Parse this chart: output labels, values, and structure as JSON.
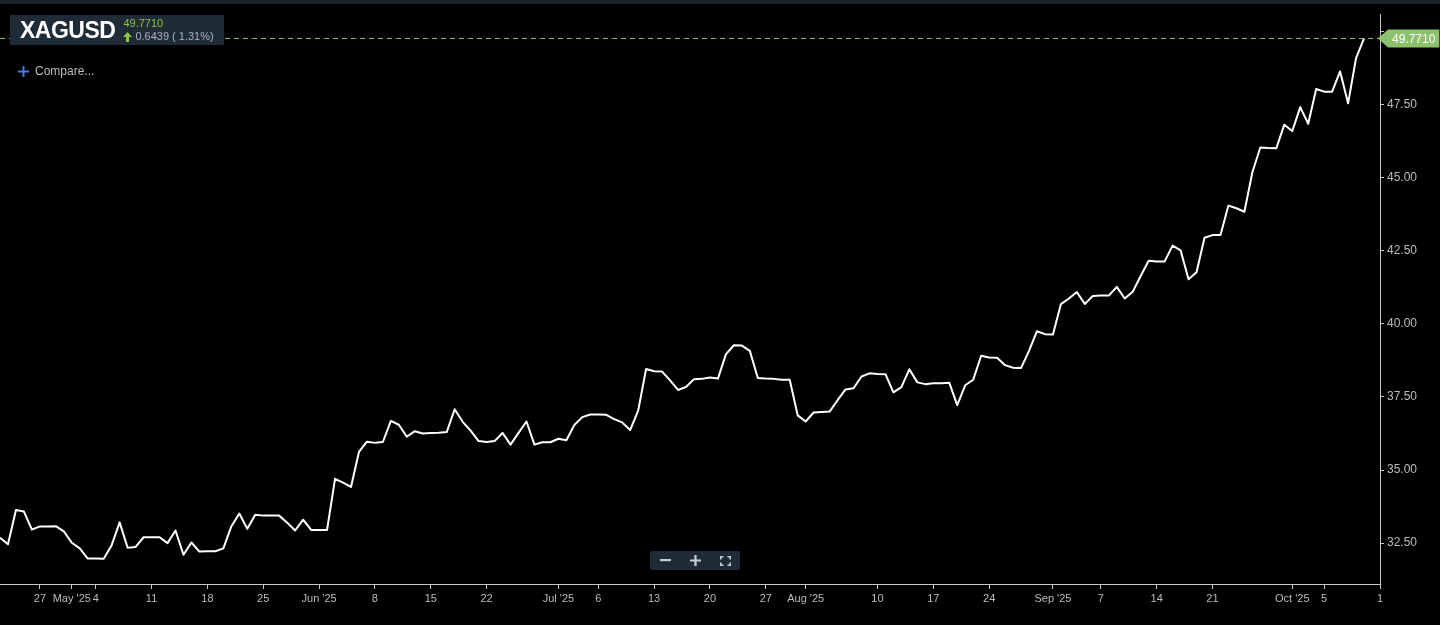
{
  "chart_data": {
    "type": "line",
    "title": "XAGUSD",
    "subtitle": "49.7710",
    "annotations": [
      "0.6439 ( 1.31%)",
      "Compare..."
    ],
    "xlim": [
      "2025-04-22",
      "2025-10-12"
    ],
    "xticks": [
      {
        "value": "2025-04-27",
        "label": "27"
      },
      {
        "value": "2025-05-01",
        "label": "May '25"
      },
      {
        "value": "2025-05-04",
        "label": "4"
      },
      {
        "value": "2025-05-11",
        "label": "11"
      },
      {
        "value": "2025-05-18",
        "label": "18"
      },
      {
        "value": "2025-05-25",
        "label": "25"
      },
      {
        "value": "2025-06-01",
        "label": "Jun '25"
      },
      {
        "value": "2025-06-08",
        "label": "8"
      },
      {
        "value": "2025-06-15",
        "label": "15"
      },
      {
        "value": "2025-06-22",
        "label": "22"
      },
      {
        "value": "2025-07-01",
        "label": "Jul '25"
      },
      {
        "value": "2025-07-06",
        "label": "6"
      },
      {
        "value": "2025-07-13",
        "label": "13"
      },
      {
        "value": "2025-07-20",
        "label": "20"
      },
      {
        "value": "2025-07-27",
        "label": "27"
      },
      {
        "value": "2025-08-01",
        "label": "Aug '25"
      },
      {
        "value": "2025-08-10",
        "label": "10"
      },
      {
        "value": "2025-08-17",
        "label": "17"
      },
      {
        "value": "2025-08-24",
        "label": "24"
      },
      {
        "value": "2025-09-01",
        "label": "Sep '25"
      },
      {
        "value": "2025-09-07",
        "label": "7"
      },
      {
        "value": "2025-09-14",
        "label": "14"
      },
      {
        "value": "2025-09-21",
        "label": "21"
      },
      {
        "value": "2025-10-01",
        "label": "Oct '25"
      },
      {
        "value": "2025-10-05",
        "label": "5"
      },
      {
        "value": "2025-10-12",
        "label": "1"
      }
    ],
    "ylim": [
      31.1,
      50.6
    ],
    "yticks": [
      {
        "value": 32.5,
        "label": "32.50"
      },
      {
        "value": 35,
        "label": "35.00"
      },
      {
        "value": 37.5,
        "label": "37.50"
      },
      {
        "value": 40,
        "label": "40.00"
      },
      {
        "value": 42.5,
        "label": "42.50"
      },
      {
        "value": 45,
        "label": "45.00"
      },
      {
        "value": 47.5,
        "label": "47.50"
      },
      {
        "value": 50,
        "label": null
      }
    ],
    "grid": false,
    "legend": false,
    "marker": "none",
    "line_style": "solid",
    "ref_lines": [
      {
        "axis": "y",
        "value": 49.771,
        "label": "49.7710",
        "color": "#8cc26c",
        "line_style": "dashed"
      }
    ],
    "series": [
      {
        "color": "#ffffff",
        "x": [
          "2025-04-22",
          "2025-04-23",
          "2025-04-24",
          "2025-04-25",
          "2025-04-26",
          "2025-04-27",
          "2025-04-28",
          "2025-04-29",
          "2025-04-30",
          "2025-05-01",
          "2025-05-02",
          "2025-05-03",
          "2025-05-04",
          "2025-05-05",
          "2025-05-06",
          "2025-05-07",
          "2025-05-08",
          "2025-05-09",
          "2025-05-10",
          "2025-05-11",
          "2025-05-12",
          "2025-05-13",
          "2025-05-14",
          "2025-05-15",
          "2025-05-16",
          "2025-05-17",
          "2025-05-18",
          "2025-05-19",
          "2025-05-20",
          "2025-05-21",
          "2025-05-22",
          "2025-05-23",
          "2025-05-24",
          "2025-05-25",
          "2025-05-26",
          "2025-05-27",
          "2025-05-28",
          "2025-05-29",
          "2025-05-30",
          "2025-05-31",
          "2025-06-01",
          "2025-06-02",
          "2025-06-03",
          "2025-06-04",
          "2025-06-05",
          "2025-06-06",
          "2025-06-07",
          "2025-06-08",
          "2025-06-09",
          "2025-06-10",
          "2025-06-11",
          "2025-06-12",
          "2025-06-13",
          "2025-06-14",
          "2025-06-15",
          "2025-06-16",
          "2025-06-17",
          "2025-06-18",
          "2025-06-19",
          "2025-06-20",
          "2025-06-21",
          "2025-06-22",
          "2025-06-23",
          "2025-06-24",
          "2025-06-25",
          "2025-06-26",
          "2025-06-27",
          "2025-06-28",
          "2025-06-29",
          "2025-06-30",
          "2025-07-01",
          "2025-07-02",
          "2025-07-03",
          "2025-07-04",
          "2025-07-05",
          "2025-07-06",
          "2025-07-07",
          "2025-07-08",
          "2025-07-09",
          "2025-07-10",
          "2025-07-11",
          "2025-07-12",
          "2025-07-13",
          "2025-07-14",
          "2025-07-15",
          "2025-07-16",
          "2025-07-17",
          "2025-07-18",
          "2025-07-19",
          "2025-07-20",
          "2025-07-21",
          "2025-07-22",
          "2025-07-23",
          "2025-07-24",
          "2025-07-25",
          "2025-07-26",
          "2025-07-27",
          "2025-07-28",
          "2025-07-29",
          "2025-07-30",
          "2025-07-31",
          "2025-08-01",
          "2025-08-02",
          "2025-08-03",
          "2025-08-04",
          "2025-08-05",
          "2025-08-06",
          "2025-08-07",
          "2025-08-08",
          "2025-08-09",
          "2025-08-10",
          "2025-08-11",
          "2025-08-12",
          "2025-08-13",
          "2025-08-14",
          "2025-08-15",
          "2025-08-16",
          "2025-08-17",
          "2025-08-18",
          "2025-08-19",
          "2025-08-20",
          "2025-08-21",
          "2025-08-22",
          "2025-08-23",
          "2025-08-24",
          "2025-08-25",
          "2025-08-26",
          "2025-08-27",
          "2025-08-28",
          "2025-08-29",
          "2025-08-30",
          "2025-08-31",
          "2025-09-01",
          "2025-09-02",
          "2025-09-03",
          "2025-09-04",
          "2025-09-05",
          "2025-09-06",
          "2025-09-07",
          "2025-09-08",
          "2025-09-09",
          "2025-09-10",
          "2025-09-11",
          "2025-09-12",
          "2025-09-13",
          "2025-09-14",
          "2025-09-15",
          "2025-09-16",
          "2025-09-17",
          "2025-09-18",
          "2025-09-19",
          "2025-09-20",
          "2025-09-21",
          "2025-09-22",
          "2025-09-23",
          "2025-09-24",
          "2025-09-25",
          "2025-09-26",
          "2025-09-27",
          "2025-09-28",
          "2025-09-29",
          "2025-09-30",
          "2025-10-01",
          "2025-10-02",
          "2025-10-03",
          "2025-10-04",
          "2025-10-05",
          "2025-10-06",
          "2025-10-07",
          "2025-10-08",
          "2025-10-09",
          "2025-10-10"
        ],
        "values": [
          32.68,
          32.46,
          33.63,
          33.58,
          32.96,
          33.07,
          33.07,
          33.08,
          32.9,
          32.51,
          32.32,
          31.97,
          31.97,
          31.96,
          32.43,
          33.21,
          32.34,
          32.37,
          32.7,
          32.7,
          32.7,
          32.5,
          32.93,
          32.1,
          32.52,
          32.21,
          32.22,
          32.22,
          32.32,
          33.07,
          33.51,
          32.99,
          33.47,
          33.44,
          33.44,
          33.44,
          33.2,
          32.93,
          33.3,
          32.95,
          32.95,
          32.95,
          34.7,
          34.57,
          34.42,
          35.62,
          35.97,
          35.93,
          35.96,
          36.68,
          36.55,
          36.14,
          36.33,
          36.25,
          36.27,
          36.28,
          36.3,
          37.08,
          36.65,
          36.35,
          35.99,
          35.96,
          35.99,
          36.27,
          35.87,
          36.27,
          36.66,
          35.87,
          35.95,
          35.95,
          36.07,
          36.02,
          36.54,
          36.81,
          36.9,
          36.9,
          36.89,
          36.74,
          36.63,
          36.37,
          37.03,
          38.46,
          38.38,
          38.37,
          38.07,
          37.74,
          37.84,
          38.11,
          38.12,
          38.17,
          38.13,
          38.96,
          39.27,
          39.26,
          39.08,
          38.15,
          38.13,
          38.12,
          38.09,
          38.09,
          36.87,
          36.66,
          36.97,
          36.99,
          37.0,
          37.39,
          37.76,
          37.8,
          38.2,
          38.31,
          38.29,
          38.28,
          37.66,
          37.84,
          38.45,
          38.0,
          37.94,
          37.97,
          37.97,
          37.99,
          37.22,
          37.9,
          38.09,
          38.91,
          38.85,
          38.84,
          38.59,
          38.5,
          38.49,
          39.08,
          39.75,
          39.65,
          39.64,
          40.68,
          40.87,
          41.09,
          40.68,
          40.96,
          40.97,
          40.97,
          41.27,
          40.87,
          41.1,
          41.64,
          42.16,
          42.14,
          42.14,
          42.68,
          42.52,
          41.53,
          41.77,
          42.95,
          43.04,
          43.04,
          44.05,
          43.96,
          43.84,
          45.19,
          46.04,
          46.02,
          46.01,
          46.82,
          46.6,
          47.42,
          46.85,
          48.04,
          47.95,
          47.95,
          48.64,
          47.55,
          49.1,
          49.77
        ]
      }
    ]
  }
}
